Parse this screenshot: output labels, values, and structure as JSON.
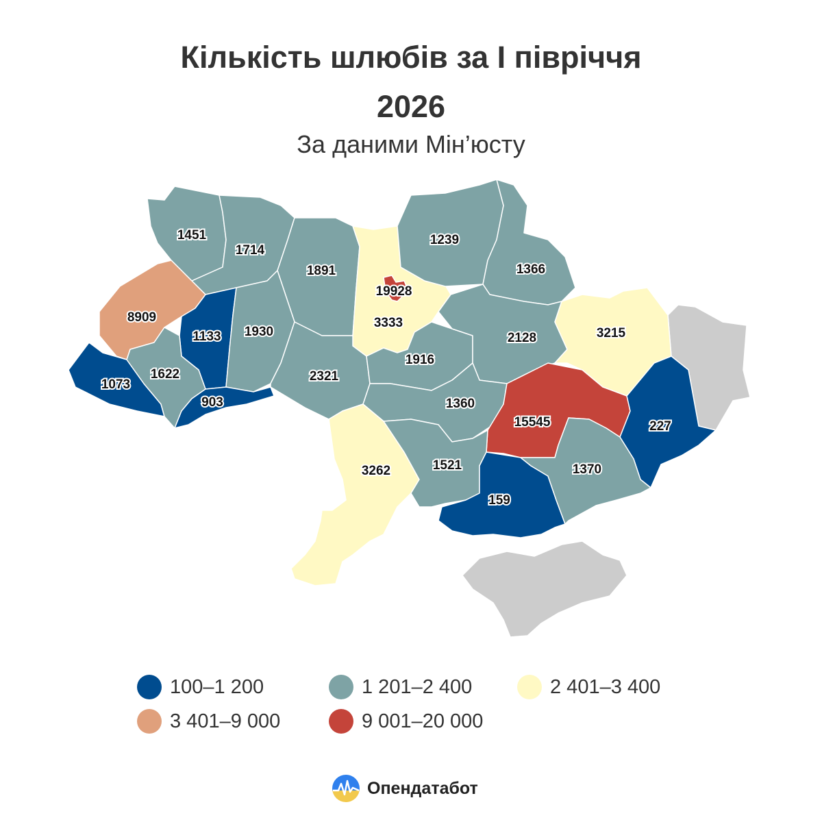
{
  "title_line1": "Кількість шлюбів за І півріччя",
  "title_line2": "2026",
  "subtitle": "За даними Мін’юсту",
  "colors": {
    "c1": "#004C8F",
    "c2": "#7EA3A5",
    "c3": "#FFF9C4",
    "c4": "#E0A07C",
    "c5": "#C4443A",
    "nodata": "#CCCCCC"
  },
  "legend": [
    {
      "label": "100–1 200",
      "color": "#004C8F"
    },
    {
      "label": "1 201–2 400",
      "color": "#7EA3A5"
    },
    {
      "label": "2 401–3 400",
      "color": "#FFF9C4"
    },
    {
      "label": "3 401–9 000",
      "color": "#E0A07C"
    },
    {
      "label": "9 001–20 000",
      "color": "#C4443A"
    }
  ],
  "regions": [
    {
      "name": "volyn",
      "value": "1451"
    },
    {
      "name": "rivne",
      "value": "1714"
    },
    {
      "name": "zhytomyr",
      "value": "1891"
    },
    {
      "name": "kyiv-city",
      "value": "19928"
    },
    {
      "name": "kyiv-oblast",
      "value": "3333"
    },
    {
      "name": "chernihiv",
      "value": "1239"
    },
    {
      "name": "sumy",
      "value": "1366"
    },
    {
      "name": "lviv",
      "value": "8909"
    },
    {
      "name": "ternopil",
      "value": "1133"
    },
    {
      "name": "khmelnytskyi",
      "value": "1930"
    },
    {
      "name": "cherkasy",
      "value": "1916"
    },
    {
      "name": "poltava",
      "value": "2128"
    },
    {
      "name": "kharkiv",
      "value": "3215"
    },
    {
      "name": "zakarpattia",
      "value": "1073"
    },
    {
      "name": "ivano-frankivsk",
      "value": "1622"
    },
    {
      "name": "chernivtsi",
      "value": "903"
    },
    {
      "name": "vinnytsia",
      "value": "2321"
    },
    {
      "name": "kirovohrad",
      "value": "1360"
    },
    {
      "name": "dnipropetrovsk",
      "value": "15545"
    },
    {
      "name": "donetsk",
      "value": "227"
    },
    {
      "name": "odesa",
      "value": "3262"
    },
    {
      "name": "mykolaiv",
      "value": "1521"
    },
    {
      "name": "kherson",
      "value": "159"
    },
    {
      "name": "zaporizhzhia",
      "value": "1370"
    }
  ],
  "brand": "Опендатабот"
}
